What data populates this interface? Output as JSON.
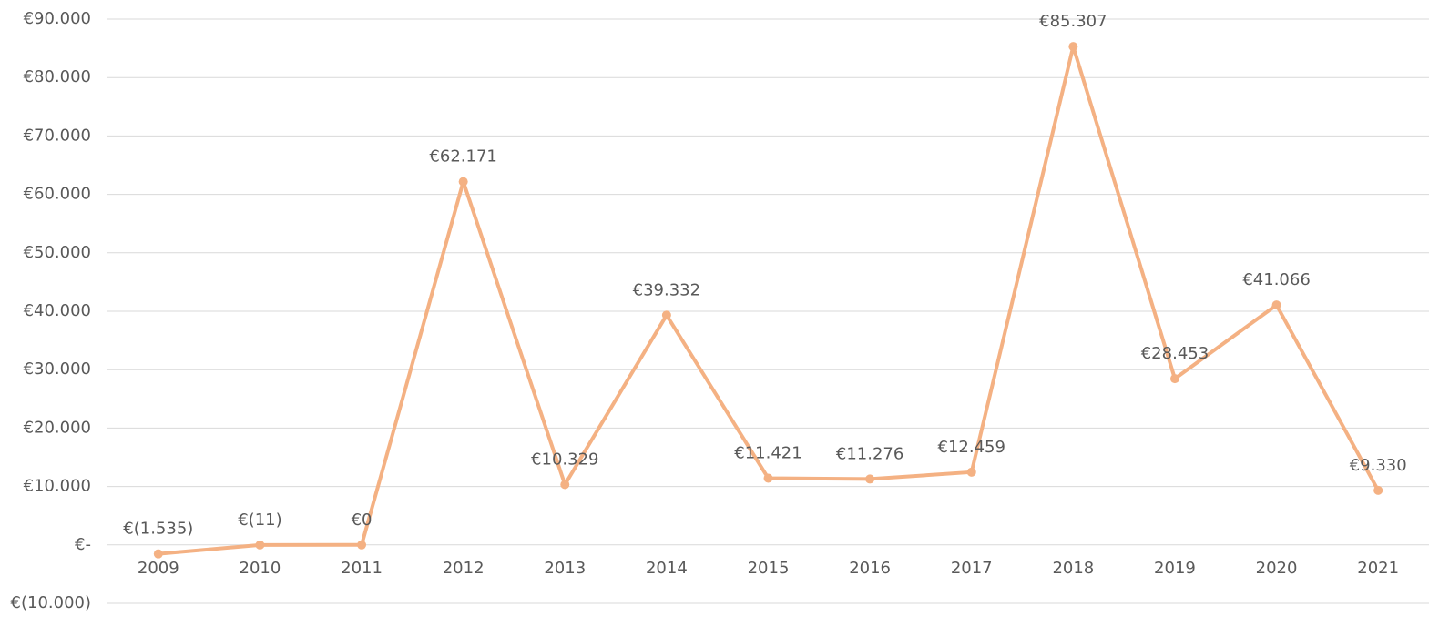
{
  "chart_data": {
    "type": "line",
    "categories": [
      "2009",
      "2010",
      "2011",
      "2012",
      "2013",
      "2014",
      "2015",
      "2016",
      "2017",
      "2018",
      "2019",
      "2020",
      "2021"
    ],
    "values": [
      -1535,
      -11,
      0,
      62171,
      10329,
      39332,
      11421,
      11276,
      12459,
      85307,
      28453,
      41066,
      9330
    ],
    "value_labels": [
      "€(1.535)",
      "€(11)",
      "€0",
      "€62.171",
      "€10.329",
      "€39.332",
      "€11.421",
      "€11.276",
      "€12.459",
      "€85.307",
      "€28.453",
      "€41.066",
      "€9.330"
    ],
    "color": "#f4b183",
    "ylim": [
      -10000,
      90000
    ],
    "yticks": [
      {
        "value": -10000,
        "label": "€(10.000)"
      },
      {
        "value": 0,
        "label": "€-"
      },
      {
        "value": 10000,
        "label": "€10.000"
      },
      {
        "value": 20000,
        "label": "€20.000"
      },
      {
        "value": 30000,
        "label": "€30.000"
      },
      {
        "value": 40000,
        "label": "€40.000"
      },
      {
        "value": 50000,
        "label": "€50.000"
      },
      {
        "value": 60000,
        "label": "€60.000"
      },
      {
        "value": 70000,
        "label": "€70.000"
      },
      {
        "value": 80000,
        "label": "€80.000"
      },
      {
        "value": 90000,
        "label": "€90.000"
      }
    ],
    "grid": true
  }
}
